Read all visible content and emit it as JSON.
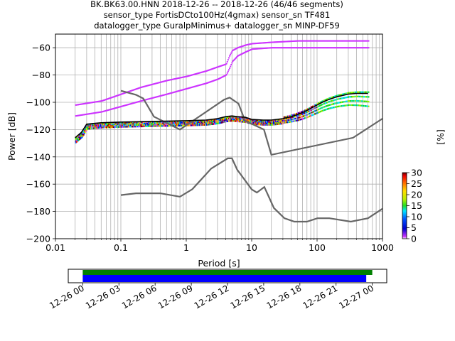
{
  "chart_data": {
    "type": "heatmap",
    "title_lines": [
      "BK.BK63.00.HNN   2018-12-26 -- 2018-12-26  (46/46 segments)",
      "sensor_type FortisDCto100Hz(4gmax) sensor_sn TF481",
      "datalogger_type GuralpMinimus+ datalogger_sn MINP-DF59"
    ],
    "xlabel": "Period [s]",
    "ylabel": "Power [dB]",
    "xscale": "log",
    "xlim": [
      0.01,
      1000
    ],
    "ylim": [
      -200,
      -50
    ],
    "xtick_values": [
      0.01,
      0.1,
      1,
      10,
      100,
      1000
    ],
    "xtick_labels": [
      "0.01",
      "0.1",
      "1",
      "10",
      "100",
      "1000"
    ],
    "ytick_values": [
      -200,
      -180,
      -160,
      -140,
      -120,
      -100,
      -80,
      -60
    ],
    "ytick_labels": [
      "−200",
      "−180",
      "−160",
      "−140",
      "−120",
      "−100",
      "−80",
      "−60"
    ],
    "grid": true,
    "colorbar": {
      "label": "[%]",
      "range": [
        0,
        30
      ],
      "tick_values": [
        0,
        5,
        10,
        15,
        20,
        25,
        30
      ],
      "tick_labels": [
        "0",
        "5",
        "10",
        "15",
        "20",
        "25",
        "30"
      ]
    },
    "noise_model_high": {
      "x": [
        0.1,
        0.17,
        0.22,
        0.32,
        0.8,
        3.8,
        4.6,
        6.3,
        7.9,
        15.4,
        20,
        354.8,
        1000
      ],
      "y": [
        -91.5,
        -94.5,
        -97.2,
        -110.5,
        -120,
        -98,
        -96.5,
        -101,
        -113.5,
        -120,
        -138.5,
        -126,
        -112
      ]
    },
    "noise_model_low": {
      "x": [
        0.1,
        0.17,
        0.4,
        0.8,
        1.24,
        2.4,
        4.3,
        5.0,
        6.0,
        10.0,
        12.0,
        15.6,
        21.9,
        31.6,
        45.0,
        70.0,
        101.0,
        154.0,
        328.0,
        600.0,
        1000.0
      ],
      "y": [
        -168,
        -166.7,
        -166.7,
        -169.2,
        -163.7,
        -148.6,
        -141.1,
        -141.1,
        -149.4,
        -163.8,
        -166.2,
        -162.1,
        -177.5,
        -185,
        -187.5,
        -187.5,
        -185,
        -185,
        -187.5,
        -185,
        -178
      ]
    },
    "mode_curve": {
      "x": [
        0.02,
        0.025,
        0.03,
        0.05,
        0.1,
        0.3,
        1,
        2,
        3,
        4,
        5,
        6,
        8,
        10,
        15,
        20,
        30,
        40,
        50,
        60,
        70,
        80,
        100,
        120,
        150,
        200,
        300,
        400,
        600
      ],
      "y": [
        -126,
        -122,
        -116,
        -115,
        -114.5,
        -114,
        -113.5,
        -113,
        -112,
        -110.5,
        -110,
        -110.5,
        -111,
        -112.5,
        -113,
        -113,
        -112,
        -110.5,
        -109,
        -107.5,
        -106,
        -104.5,
        -102,
        -100,
        -98,
        -96,
        -94,
        -93.5,
        -93.5
      ]
    },
    "psd_band_upper": {
      "x": [
        0.02,
        0.05,
        0.1,
        0.2,
        0.5,
        1,
        2,
        3,
        4,
        4.5,
        5,
        6,
        8,
        10,
        20,
        50,
        100,
        200,
        300,
        400,
        600
      ],
      "y": [
        -102,
        -99,
        -94,
        -89,
        -84,
        -81,
        -77,
        -74,
        -72,
        -66,
        -62,
        -60,
        -58,
        -57,
        -56,
        -55,
        -55,
        -55,
        -55,
        -55,
        -55
      ]
    },
    "psd_band_lower": {
      "x": [
        0.02,
        0.05,
        0.1,
        0.2,
        0.5,
        1,
        2,
        3,
        4,
        4.5,
        5,
        6,
        8,
        10,
        20,
        50,
        100,
        200,
        300,
        400,
        600
      ],
      "y": [
        -110,
        -107,
        -103,
        -99,
        -94,
        -90,
        -86,
        -83,
        -80,
        -75,
        -70,
        -66,
        -63,
        -61,
        -60,
        -60,
        -60,
        -60,
        -60,
        -60,
        -60
      ]
    },
    "timeline": {
      "tick_labels": [
        "12-26 00",
        "12-26 03",
        "12-26 06",
        "12-26 09",
        "12-26 12",
        "12-26 15",
        "12-26 18",
        "12-26 21",
        "12-27 00"
      ],
      "tick_hours": [
        0,
        3,
        6,
        9,
        12,
        15,
        18,
        21,
        24
      ],
      "xlim_hours": [
        -1.2,
        25.2
      ],
      "available_data": {
        "start_hour": 0,
        "end_hour": 24.0,
        "color": "#008000"
      },
      "used_data": {
        "start_hour": 0,
        "end_hour": 23.5,
        "color": "#0000ff"
      }
    },
    "colors": {
      "noise_model": "#666666",
      "mode": "#000000",
      "grid": "#b0b0b0"
    }
  }
}
